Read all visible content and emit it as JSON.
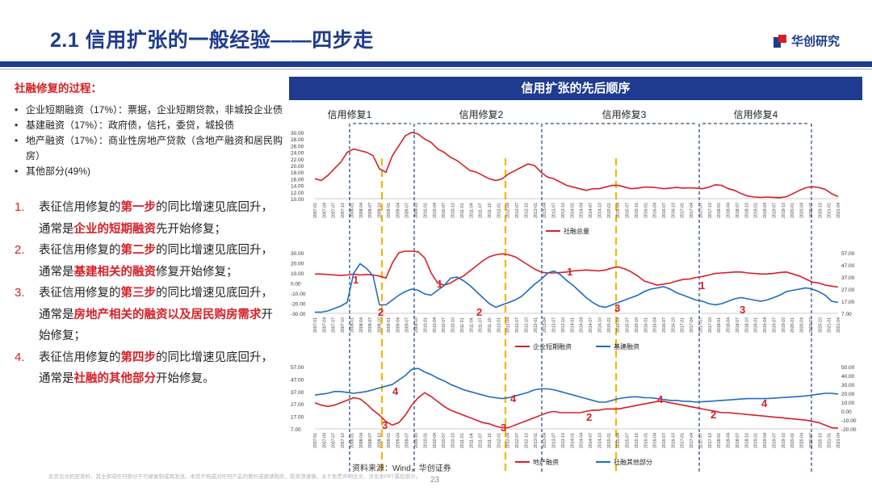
{
  "header": {
    "title": "2.1 信用扩张的一般经验——四步走",
    "logo_text": "华创研究"
  },
  "left": {
    "process_title": "社融修复的过程：",
    "bullets": [
      "企业短期融资（17%）：票据，企业短期贷款，非城投企业债",
      "基建融资（17%）：政府债，信托，委贷，城投债",
      "地产融资（17%）：商业性房地产贷款（含地产融资和居民购房）",
      "其他部分(49%)"
    ],
    "steps": [
      {
        "num": "1.",
        "pre": "表征信用修复的",
        "h1": "第一步",
        "mid": "的同比增速见底回升，通常是",
        "h2": "企业的短期融资",
        "post": "先开始修复；"
      },
      {
        "num": "2.",
        "pre": "表征信用修复的",
        "h1": "第二步",
        "mid": "的同比增速见底回升，通常是",
        "h2": "基建相关的融资",
        "post": "修复开始修复；"
      },
      {
        "num": "3.",
        "pre": "表征信用修复的",
        "h1": "第三步",
        "mid": "的同比增速见底回升，通常是",
        "h2": "房地产相关的融资以及居民购房需求",
        "post": "开始修复；"
      },
      {
        "num": "4.",
        "pre": "表征信用修复的",
        "h1": "第四步",
        "mid": "的同比增速见底回升，通常是",
        "h2": "社融的其他部分",
        "post": "开始修复。"
      }
    ]
  },
  "panel": {
    "title": "信用扩张的先后顺序"
  },
  "phases": [
    "信用修复1",
    "信用修复2",
    "信用修复3",
    "信用修复4"
  ],
  "chart_data": [
    {
      "type": "line",
      "title": "",
      "series": [
        {
          "name": "社融总量",
          "color": "#d61f26",
          "values": [
            16,
            15.5,
            17,
            19,
            21,
            24,
            25,
            24.5,
            24,
            23,
            19,
            18,
            23,
            26,
            29,
            30,
            29.5,
            28,
            27,
            25,
            24,
            22.5,
            21.5,
            20,
            18.5,
            18,
            17,
            16,
            15.5,
            16,
            17.5,
            18.5,
            19.5,
            20.5,
            20,
            18,
            16.5,
            16,
            15,
            14,
            13.5,
            13,
            12.5,
            13,
            13,
            13.5,
            14,
            14,
            13.5,
            13,
            13.2,
            13.5,
            13.5,
            13.3,
            13,
            13.2,
            13.4,
            13.2,
            13.3,
            13.2,
            13,
            13.5,
            14.2,
            14,
            13,
            12.5,
            11.5,
            10.8,
            10.5,
            10.4,
            10.5,
            10.4,
            10.3,
            10.6,
            11.5,
            12.5,
            13.3,
            13.6,
            13.4,
            12.8,
            11.5,
            10.6
          ]
        }
      ],
      "ylim": [
        10,
        30
      ],
      "y_ticks": [
        "30.00",
        "28.00",
        "26.00",
        "24.00",
        "22.00",
        "20.00",
        "18.00",
        "16.00",
        "14.00",
        "12.00",
        "10.00"
      ],
      "legend": [
        "社融总量"
      ]
    },
    {
      "type": "line",
      "series": [
        {
          "name": "企业短期融资",
          "color": "#d61f26",
          "axis": "left",
          "values": [
            9,
            9,
            8.5,
            8,
            7.5,
            8,
            9,
            8,
            8.5,
            8,
            7,
            5,
            20,
            30,
            33,
            33,
            31,
            25,
            10,
            0,
            -2,
            0,
            4,
            7,
            12,
            17,
            22,
            26,
            28,
            29,
            28,
            26,
            22,
            18,
            14,
            11,
            10,
            10,
            10.5,
            11,
            12,
            12.5,
            13,
            12.5,
            12,
            13,
            15,
            16,
            14,
            11,
            7,
            2,
            0,
            -2,
            -1,
            0,
            2,
            3.5,
            4,
            5.5,
            6.5,
            8,
            9.5,
            10,
            10.5,
            11,
            11,
            10,
            9.5,
            9,
            9,
            9.5,
            10.5,
            11,
            9,
            7,
            4,
            1,
            0,
            -2,
            -3,
            -4
          ]
        },
        {
          "name": "基建融资",
          "color": "#1f6cc0",
          "axis": "right",
          "values": [
            8,
            8,
            9,
            11,
            13,
            16,
            40,
            48,
            44,
            38,
            14,
            14,
            18,
            22,
            25,
            27,
            26,
            23,
            22,
            26,
            30,
            36,
            37,
            34,
            30,
            25,
            20,
            15,
            12,
            14,
            16,
            18,
            21,
            26,
            31,
            35,
            40,
            42,
            39,
            34,
            30,
            25,
            20,
            16,
            13,
            12,
            14,
            16,
            18,
            20,
            22,
            25,
            27,
            28,
            29,
            27,
            24,
            22,
            20,
            18,
            17,
            15,
            14,
            15,
            17,
            19,
            20,
            19,
            18,
            17,
            18,
            20,
            22,
            25,
            26,
            27,
            28,
            27,
            25,
            22,
            17,
            16
          ]
        }
      ],
      "left_ticks": [
        "30.00",
        "20.00",
        "10.00",
        "0.00",
        "-10.00",
        "-20.00",
        "-30.00"
      ],
      "right_ticks": [
        "57.00",
        "47.00",
        "37.00",
        "27.00",
        "17.00",
        "7.00"
      ],
      "legend": [
        "企业短期融资",
        "基建融资"
      ]
    },
    {
      "type": "line",
      "series": [
        {
          "name": "地产融资",
          "color": "#d61f26",
          "axis": "left",
          "values": [
            28,
            26,
            25,
            26,
            28,
            30,
            32,
            31,
            27,
            22,
            18,
            13,
            10,
            12,
            18,
            26,
            32,
            36,
            33,
            29,
            25,
            22,
            20,
            18,
            16,
            14,
            12,
            11,
            9,
            8,
            8,
            10,
            12,
            14,
            16,
            18,
            20,
            21,
            20,
            20,
            20,
            20,
            21,
            22,
            22,
            23,
            23,
            23,
            24,
            25,
            26,
            27,
            28,
            29,
            29,
            28,
            27,
            26,
            25,
            24,
            23,
            22,
            21,
            20,
            20,
            19.5,
            19,
            18.5,
            18,
            17.5,
            17,
            16.5,
            16,
            15.5,
            15,
            14.5,
            14,
            13,
            12,
            10,
            8,
            7.5
          ]
        },
        {
          "name": "社融其他部分",
          "color": "#1f6cc0",
          "axis": "right",
          "values": [
            18,
            19,
            20,
            22,
            22,
            21,
            20,
            21,
            22,
            24,
            26,
            28,
            30,
            35,
            40,
            47,
            48,
            44,
            41,
            37,
            34,
            30,
            27,
            24,
            22,
            20,
            18,
            16,
            15,
            14,
            15,
            17,
            19,
            21,
            24,
            25,
            25,
            24,
            22,
            20,
            18,
            16,
            14,
            12,
            10,
            10,
            12,
            14,
            15,
            16,
            16,
            15,
            15,
            14,
            13,
            12,
            12,
            11,
            11,
            10,
            10.5,
            11,
            11.5,
            12,
            12.5,
            13,
            13.5,
            14,
            14,
            14,
            14,
            14.5,
            15,
            15.5,
            16,
            16.5,
            17,
            18,
            19,
            20,
            20,
            19
          ]
        }
      ],
      "left_ticks": [
        "57.00",
        "47.00",
        "37.00",
        "27.00",
        "17.00",
        "7.00"
      ],
      "right_ticks": [
        "50.00",
        "40.00",
        "30.00",
        "20.00",
        "10.00",
        "0.00",
        "-10.00",
        "-20.00"
      ],
      "legend": [
        "地产融资",
        "社融其他部分"
      ]
    }
  ],
  "x_ticks": [
    "2007-01",
    "2007-04",
    "2007-07",
    "2007-10",
    "2008-01",
    "2008-04",
    "2008-07",
    "2008-10",
    "2009-01",
    "2009-04",
    "2009-07",
    "2009-10",
    "2010-01",
    "2010-04",
    "2010-07",
    "2010-10",
    "2011-01",
    "2011-04",
    "2011-07",
    "2011-10",
    "2012-01",
    "2012-04",
    "2012-07",
    "2012-10",
    "2013-01",
    "2013-04",
    "2013-07",
    "2013-10",
    "2014-01",
    "2014-04",
    "2014-07",
    "2014-10",
    "2015-01",
    "2015-04",
    "2015-07",
    "2015-10",
    "2016-01",
    "2016-04",
    "2016-07",
    "2016-10",
    "2017-01",
    "2017-04",
    "2017-07",
    "2017-10",
    "2018-01",
    "2018-04",
    "2018-07",
    "2018-10",
    "2019-01",
    "2019-04",
    "2019-07",
    "2019-10",
    "2020-01",
    "2020-04",
    "2020-07",
    "2020-10",
    "2021-01",
    "2021-04"
  ],
  "annotations": {
    "chart2": [
      "1",
      "2",
      "1",
      "2",
      "1",
      "3",
      "1",
      "3"
    ],
    "chart3": [
      "4",
      "3",
      "4",
      "3",
      "2",
      "4",
      "2",
      "4"
    ]
  },
  "source": "资料来源：Wind，华创证券",
  "page": "23",
  "disclaimer": "此页包含机密资料，其全部或任何部分不可被复制或再发送。本页不构成对任何产品的要约或邀请购买，投资须谨慎，关于免责声明全文，详见本PPT最后部分。"
}
